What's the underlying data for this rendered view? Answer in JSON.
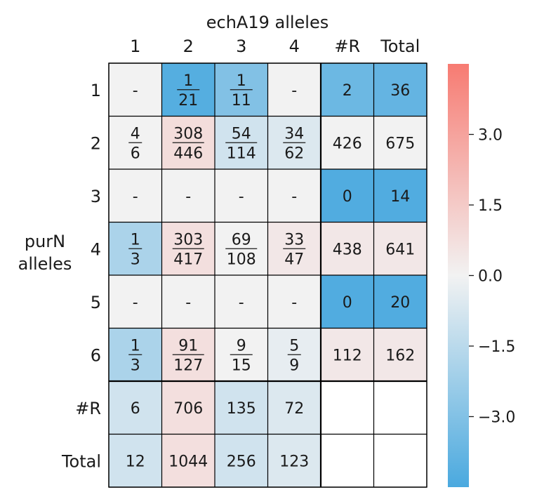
{
  "chart_data": {
    "type": "heatmap",
    "title": "echA19 alleles",
    "col_axis_label": "echA19 alleles",
    "row_axis_label": "purN\nalleles",
    "columns": [
      "1",
      "2",
      "3",
      "4",
      "#R",
      "Total"
    ],
    "rows": [
      "1",
      "2",
      "3",
      "4",
      "5",
      "6",
      "#R",
      "Total"
    ],
    "cells": [
      [
        {
          "t": "-",
          "v": 0.0
        },
        {
          "n": "1",
          "d": "21",
          "v": -4.2
        },
        {
          "n": "1",
          "d": "11",
          "v": -3.0
        },
        {
          "t": "-",
          "v": 0.0
        },
        {
          "t": "2",
          "v": -3.6
        },
        {
          "t": "36",
          "v": -3.8
        }
      ],
      [
        {
          "n": "4",
          "d": "6",
          "v": 0.0
        },
        {
          "n": "308",
          "d": "446",
          "v": 0.8
        },
        {
          "n": "54",
          "d": "114",
          "v": -0.9
        },
        {
          "n": "34",
          "d": "62",
          "v": -0.6
        },
        {
          "t": "426",
          "v": 0.0
        },
        {
          "t": "675",
          "v": 0.0
        }
      ],
      [
        {
          "t": "-",
          "v": 0.0
        },
        {
          "t": "-",
          "v": 0.0
        },
        {
          "t": "-",
          "v": 0.0
        },
        {
          "t": "-",
          "v": 0.0
        },
        {
          "t": "0",
          "v": -4.3
        },
        {
          "t": "14",
          "v": -4.3
        }
      ],
      [
        {
          "n": "1",
          "d": "3",
          "v": -1.9
        },
        {
          "n": "303",
          "d": "417",
          "v": 0.7
        },
        {
          "n": "69",
          "d": "108",
          "v": 0.0
        },
        {
          "n": "33",
          "d": "47",
          "v": 0.4
        },
        {
          "t": "438",
          "v": 0.4
        },
        {
          "t": "641",
          "v": 0.4
        }
      ],
      [
        {
          "t": "-",
          "v": 0.0
        },
        {
          "t": "-",
          "v": 0.0
        },
        {
          "t": "-",
          "v": 0.0
        },
        {
          "t": "-",
          "v": 0.0
        },
        {
          "t": "0",
          "v": -4.3
        },
        {
          "t": "20",
          "v": -4.3
        }
      ],
      [
        {
          "n": "1",
          "d": "3",
          "v": -1.9
        },
        {
          "n": "91",
          "d": "127",
          "v": 0.7
        },
        {
          "n": "9",
          "d": "15",
          "v": 0.0
        },
        {
          "n": "5",
          "d": "9",
          "v": -0.3
        },
        {
          "t": "112",
          "v": 0.4
        },
        {
          "t": "162",
          "v": 0.4
        }
      ],
      [
        {
          "t": "6",
          "v": -0.9
        },
        {
          "t": "706",
          "v": 0.7
        },
        {
          "t": "135",
          "v": -0.9
        },
        {
          "t": "72",
          "v": -0.6
        },
        {
          "t": "",
          "v": null
        },
        {
          "t": "",
          "v": null
        }
      ],
      [
        {
          "t": "12",
          "v": -0.9
        },
        {
          "t": "1044",
          "v": 0.7
        },
        {
          "t": "256",
          "v": -0.9
        },
        {
          "t": "123",
          "v": -0.6
        },
        {
          "t": "",
          "v": null
        },
        {
          "t": "",
          "v": null
        }
      ]
    ],
    "colorbar": {
      "vmin": -4.5,
      "vmax": 4.5,
      "ticks": [
        3.0,
        1.5,
        0.0,
        -1.5,
        -3.0
      ],
      "tick_labels": [
        "3.0",
        "1.5",
        "0.0",
        "−1.5",
        "−3.0"
      ]
    },
    "colors": {
      "negative": "#4aa9df",
      "center": "#f2f2f2",
      "positive": "#f77b72",
      "empty": "#ffffff",
      "grid": "#000000"
    }
  }
}
